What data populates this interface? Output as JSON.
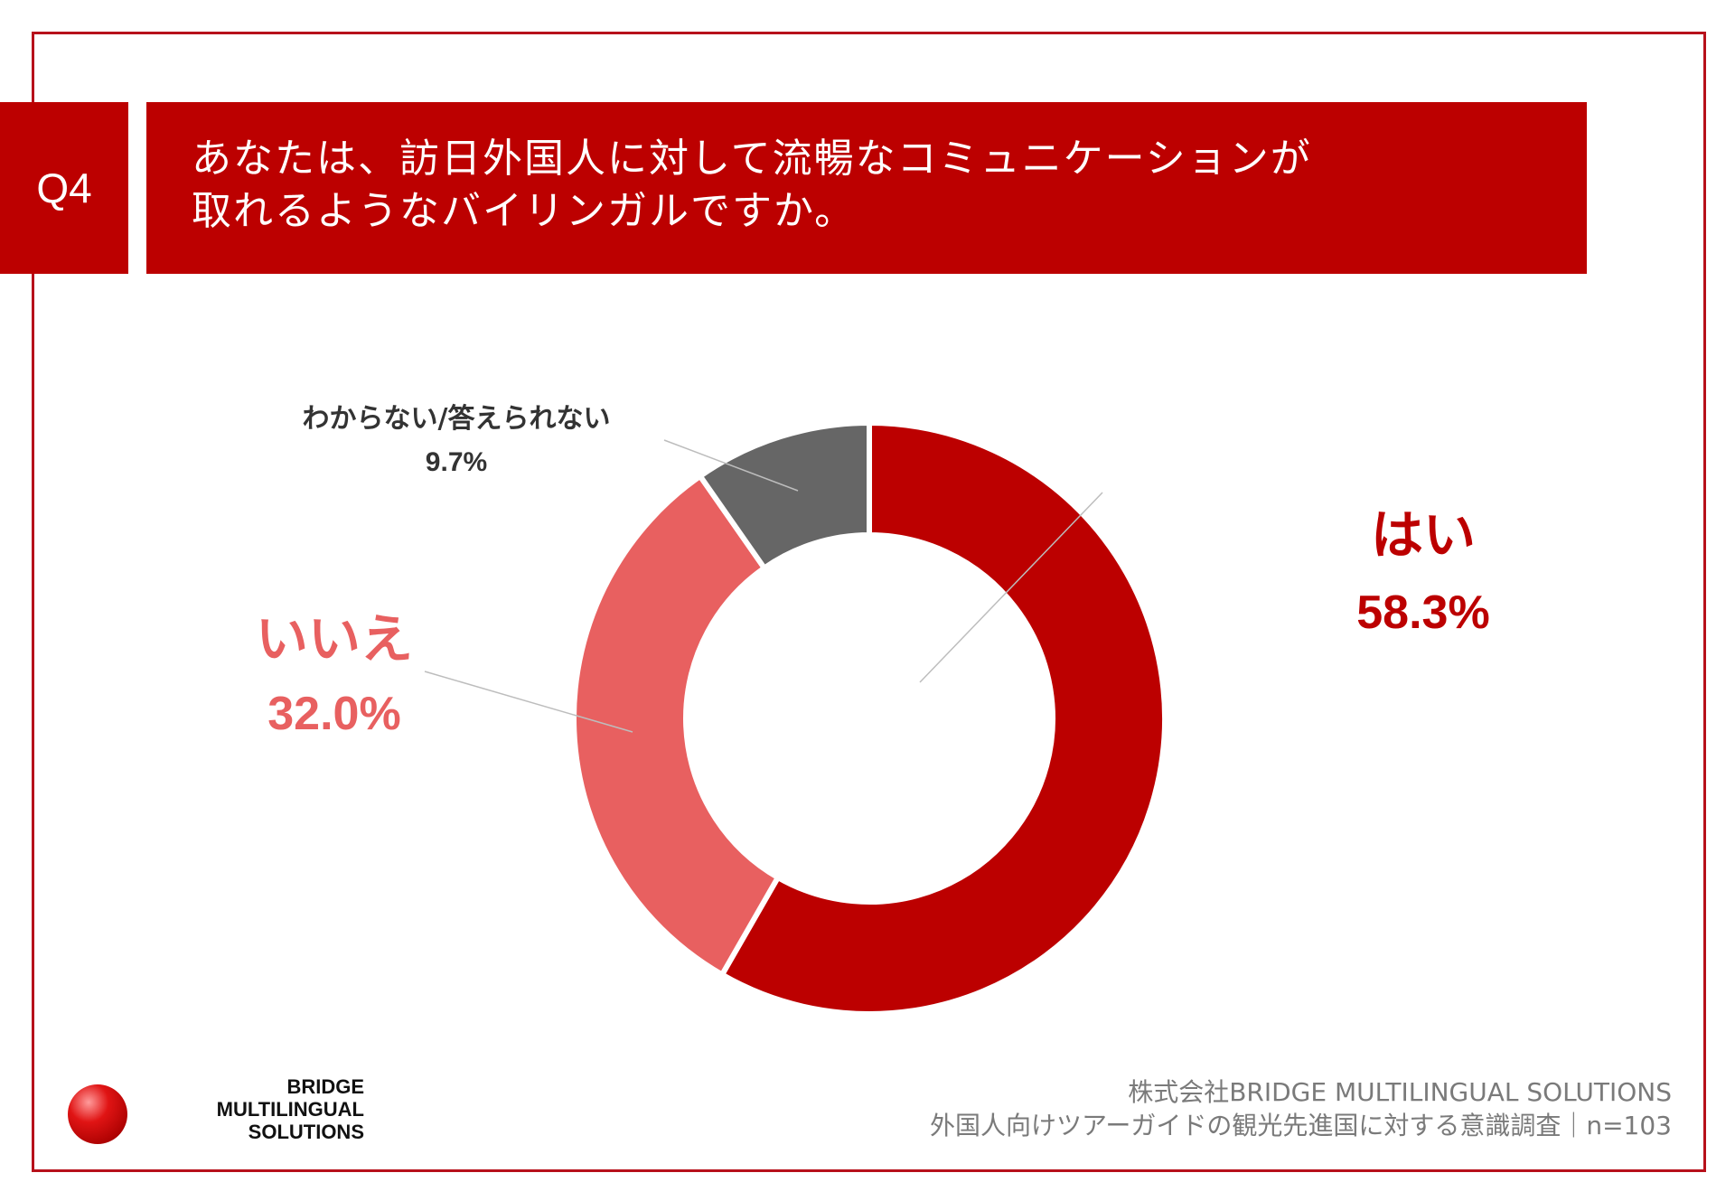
{
  "question": {
    "number": "Q4",
    "lines": [
      "あなたは、訪日外国人に対して流暢なコミュニケーションが",
      "取れるようなバイリンガルですか。"
    ]
  },
  "chart_data": {
    "type": "pie",
    "variant": "donut",
    "title": "あなたは、訪日外国人に対して流暢なコミュニケーションが取れるようなバイリンガルですか。",
    "categories": [
      "はい",
      "いいえ",
      "わからない/答えられない"
    ],
    "values": [
      58.3,
      32.0,
      9.7
    ],
    "value_labels": [
      "58.3%",
      "32.0%",
      "9.7%"
    ],
    "colors": [
      "#bc0000",
      "#e86060",
      "#666666"
    ],
    "unit": "%",
    "n": 103
  },
  "logo": {
    "lines": [
      "BRIDGE",
      "MULTILINGUAL",
      "SOLUTIONS"
    ]
  },
  "source": {
    "company": "株式会社BRIDGE MULTILINGUAL SOLUTIONS",
    "survey": "外国人向けツアーガイドの観光先進国に対する意識調査｜n=103"
  }
}
